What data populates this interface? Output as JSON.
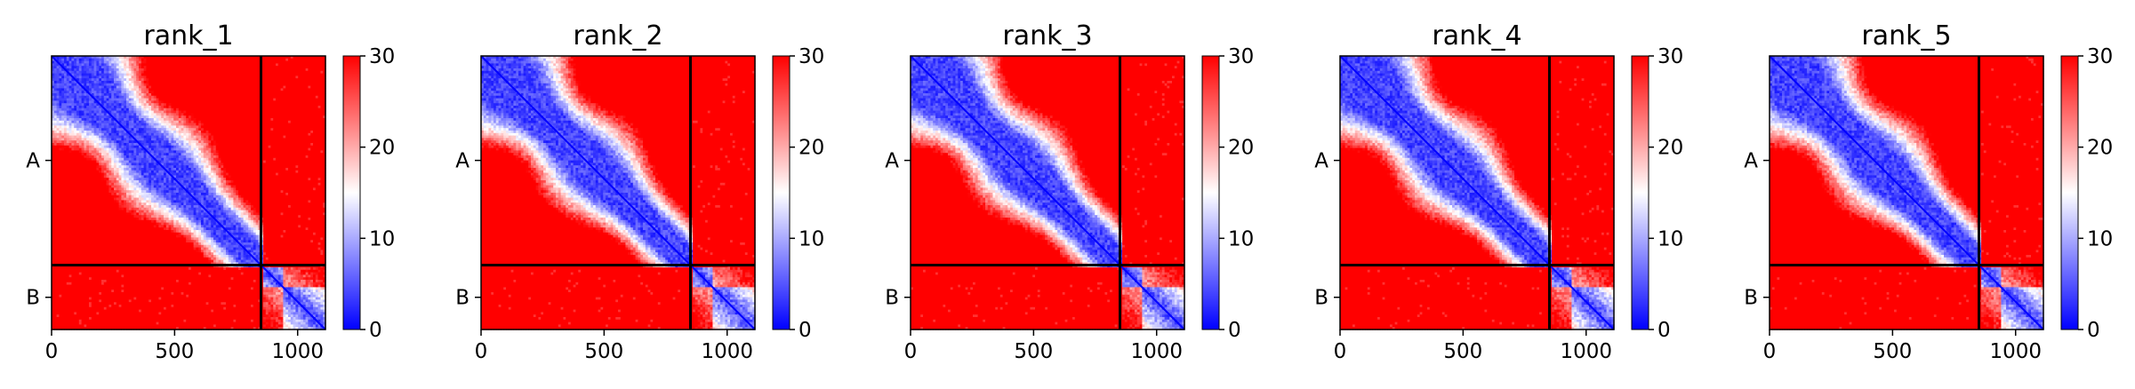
{
  "chart_data": {
    "type": "heatmap",
    "colormap": {
      "name": "bwr",
      "low": "#0000ff",
      "mid": "#ffffff",
      "high": "#ff0000"
    },
    "shared": {
      "color_range": [
        0,
        30
      ],
      "colorbar_ticks": [
        "0",
        "10",
        "20",
        "30"
      ],
      "x_range": [
        0,
        1113
      ],
      "x_ticks": [
        {
          "value": 0,
          "label": "0"
        },
        {
          "value": 500,
          "label": "500"
        },
        {
          "value": 1000,
          "label": "1000"
        }
      ],
      "chain_boundary": 851,
      "y_ticks": [
        {
          "value": 425,
          "label": "A"
        },
        {
          "value": 982,
          "label": "B"
        }
      ],
      "diagonal_value": 0,
      "off_block_value": 30
    },
    "panels": [
      {
        "title": "rank_1"
      },
      {
        "title": "rank_2"
      },
      {
        "title": "rank_3"
      },
      {
        "title": "rank_4"
      },
      {
        "title": "rank_5"
      }
    ]
  }
}
